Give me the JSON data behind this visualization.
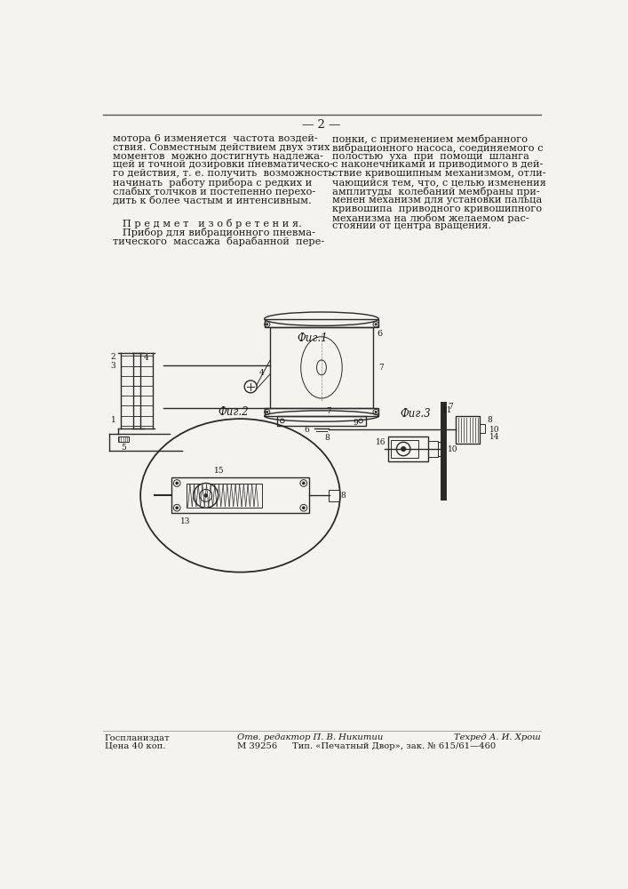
{
  "page_number": "2",
  "bg_color": "#f5f3ef",
  "text_color": "#1a1a1a",
  "left_col_text": [
    "мотора 6 изменяется  частота воздей-",
    "ствия. Совместным действием двух этих",
    "моментов  можно достигнуть надлежа-",
    "щей и точной дозировки пневматическо-",
    "го действия, т. е. получить  возможность",
    "начинать  работу прибора с редких и",
    "слабых толчков и постепенно перехо-",
    "дить к более частым и интенсивным."
  ],
  "right_col_text": [
    "понки, с применением мембранного",
    "вибрационного насоса, соединяемого с",
    "полостью  уха  при  помощи  шланга",
    "с наконечниками и приводимого в дей-",
    "ствие кривошипным механизмом, отли-",
    "чающийся тем, что, с целью изменения",
    "амплитуды  колебаний мембраны при-",
    "менен механизм для установки пальца",
    "кривошипа  приводного кривошипного",
    "механизма на любом желаемом рас-",
    "стоянии от центра вращения."
  ],
  "predmet_text": "   П р е д м е т   и з о б р е т е н и я.",
  "predmet_content": [
    "   Прибор для вибрационного пневма-",
    "тического  массажа  барабанной  пере-"
  ],
  "fig1_label": "Фиг.1",
  "fig2_label": "Фиг.2",
  "fig3_label": "Фиг.3",
  "footer_left1": "Госпланиздат",
  "footer_left2": "Цена 40 коп.",
  "footer_center1": "Отв. редактор П. В. Никитии",
  "footer_center2": "М 39256",
  "footer_center3": "Тип. «Печатный Двор», зак. № 615/61—460",
  "footer_right1": "Техред А. И. Хрош"
}
